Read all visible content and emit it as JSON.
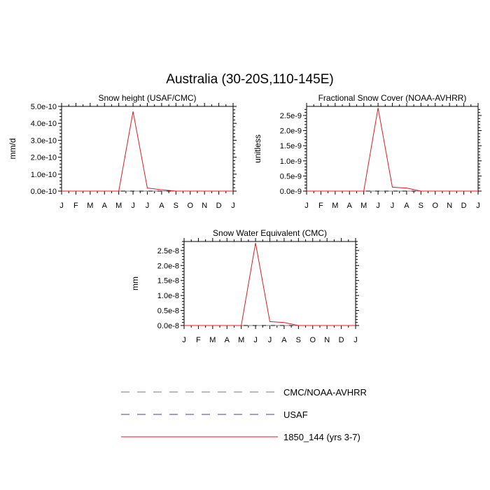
{
  "title": "Australia (30-20S,110-145E)",
  "month_labels": [
    "J",
    "F",
    "M",
    "A",
    "M",
    "J",
    "J",
    "A",
    "S",
    "O",
    "N",
    "D",
    "J"
  ],
  "colors": {
    "obs1": "#7a7a7a",
    "obs2": "#3f3fa0",
    "model": "#e41a1c"
  },
  "legend": [
    {
      "label": "CMC/NOAA-AVHRR",
      "style": "dashed",
      "color": "#7a7a7a"
    },
    {
      "label": "USAF",
      "style": "dashed",
      "color": "#3f3fa0"
    },
    {
      "label": "1850_144 (yrs 3-7)",
      "style": "solid",
      "color": "#e41a1c"
    }
  ],
  "chart_data": [
    {
      "type": "line",
      "title": "Snow height (USAF/CMC)",
      "ylabel": "mm/d",
      "xlabel": "",
      "x": [
        "J",
        "F",
        "M",
        "A",
        "M",
        "J",
        "J",
        "A",
        "S",
        "O",
        "N",
        "D",
        "J"
      ],
      "ylim": [
        0,
        5e-10
      ],
      "yticks": [
        0,
        1e-10,
        2e-10,
        3e-10,
        4e-10,
        5e-10
      ],
      "ytick_labels": [
        "0.0e-10",
        "1.0e-10",
        "2.0e-10",
        "3.0e-10",
        "4.0e-10",
        "5.0e-10"
      ],
      "series": [
        {
          "name": "1850_144 (yrs 3-7)",
          "values": [
            0,
            0,
            0,
            0,
            0,
            4.7e-10,
            1.8e-11,
            8e-12,
            0,
            0,
            0,
            0,
            0
          ]
        },
        {
          "name": "USAF",
          "values": [
            0,
            0,
            0,
            0,
            0,
            0,
            0,
            0,
            0,
            0,
            0,
            0,
            0
          ]
        },
        {
          "name": "CMC/NOAA-AVHRR",
          "values": [
            0,
            0,
            0,
            0,
            0,
            0,
            0,
            0,
            0,
            0,
            0,
            0,
            0
          ]
        }
      ]
    },
    {
      "type": "line",
      "title": "Fractional Snow Cover (NOAA-AVHRR)",
      "ylabel": "unitless",
      "xlabel": "",
      "x": [
        "J",
        "F",
        "M",
        "A",
        "M",
        "J",
        "J",
        "A",
        "S",
        "O",
        "N",
        "D",
        "J"
      ],
      "ylim": [
        0,
        2.8e-09
      ],
      "yticks": [
        0,
        5e-10,
        1e-09,
        1.5e-09,
        2e-09,
        2.5e-09
      ],
      "ytick_labels": [
        "0.0e-9",
        "0.5e-9",
        "1.0e-9",
        "1.5e-9",
        "2.0e-9",
        "2.5e-9"
      ],
      "series": [
        {
          "name": "1850_144 (yrs 3-7)",
          "values": [
            0,
            0,
            0,
            0,
            0,
            2.75e-09,
            1.3e-10,
            1e-10,
            0,
            0,
            0,
            0,
            0
          ]
        },
        {
          "name": "CMC/NOAA-AVHRR",
          "values": [
            0,
            0,
            0,
            0,
            0,
            0,
            0,
            0,
            0,
            0,
            0,
            0,
            0
          ]
        }
      ]
    },
    {
      "type": "line",
      "title": "Snow Water Equivalent (CMC)",
      "ylabel": "mm",
      "xlabel": "",
      "x": [
        "J",
        "F",
        "M",
        "A",
        "M",
        "J",
        "J",
        "A",
        "S",
        "O",
        "N",
        "D",
        "J"
      ],
      "ylim": [
        0,
        2.8e-08
      ],
      "yticks": [
        0,
        5e-09,
        1e-08,
        1.5e-08,
        2e-08,
        2.5e-08
      ],
      "ytick_labels": [
        "0.0e-8",
        "0.5e-8",
        "1.0e-8",
        "1.5e-8",
        "2.0e-8",
        "2.5e-8"
      ],
      "series": [
        {
          "name": "1850_144 (yrs 3-7)",
          "values": [
            0,
            0,
            0,
            0,
            0,
            2.75e-08,
            1.3e-09,
            1e-09,
            0,
            0,
            0,
            0,
            0
          ]
        },
        {
          "name": "CMC/NOAA-AVHRR",
          "values": [
            0,
            0,
            0,
            0,
            0,
            0,
            0,
            0,
            0,
            0,
            0,
            0,
            0
          ]
        }
      ]
    }
  ]
}
